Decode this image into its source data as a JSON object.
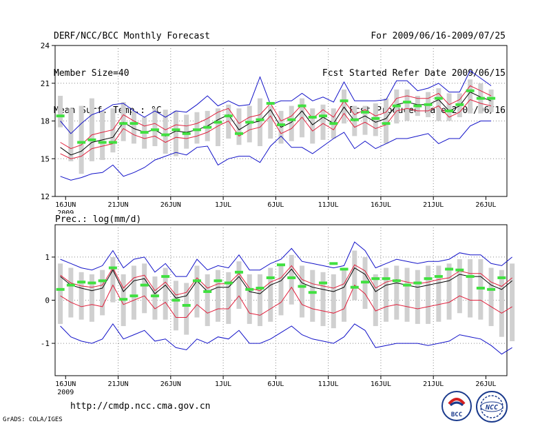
{
  "header": {
    "left": [
      "DERF/NCC/BCC Monthly Forecast",
      "Member Size=40",
      "Mean Surf. Temp.: °C"
    ],
    "right": [
      "For 2009/06/16-2009/07/25",
      "Fcst Started Refer Date 2009/06/15",
      "Fcst Produced Date 2009/06/16"
    ]
  },
  "footer": {
    "url": "http://cmdp.ncc.cma.gov.cn",
    "grads": "GrADS: COLA/IGES",
    "logo_bcc": "BCC",
    "logo_ncc": "NCC"
  },
  "colors": {
    "ensemble_mean": "#000000",
    "inner_bounds": "#e0203c",
    "outer_bounds": "#1010c8",
    "observed_marker": "#40e040",
    "spread_bar": "#d0d0d0",
    "grid": "#888888"
  },
  "chart_data": [
    {
      "type": "line",
      "title": "Mean Surf. Temp.: °C",
      "ylim": [
        12,
        24
      ],
      "yticks": [
        12,
        15,
        18,
        21,
        24
      ],
      "x_tick_labels": [
        "16JUN",
        "21JUN",
        "26JUN",
        "1JUL",
        "6JUL",
        "11JUL",
        "16JUL",
        "21JUL",
        "26JUL"
      ],
      "x_sub_label": "2009",
      "days": 40,
      "series": [
        {
          "name": "ensemble_mean",
          "values": [
            15.9,
            15.3,
            15.6,
            16.3,
            16.5,
            16.7,
            17.9,
            17.4,
            17.1,
            17.3,
            16.8,
            17.2,
            17.1,
            17.3,
            17.6,
            18.1,
            18.5,
            17.3,
            17.8,
            18.0,
            18.9,
            17.5,
            17.9,
            18.8,
            17.7,
            18.3,
            17.8,
            19.1,
            18.0,
            18.4,
            17.9,
            18.2,
            19.3,
            19.5,
            19.3,
            19.3,
            19.7,
            18.8,
            19.2,
            20.3,
            19.9,
            19.6
          ]
        },
        {
          "name": "inner_upper",
          "values": [
            16.3,
            15.8,
            16.1,
            16.9,
            17.1,
            17.3,
            18.5,
            18.0,
            17.6,
            17.8,
            17.3,
            17.7,
            17.6,
            17.8,
            18.2,
            18.7,
            19.0,
            17.8,
            18.3,
            18.5,
            19.4,
            18.0,
            18.4,
            19.3,
            18.2,
            18.9,
            18.3,
            19.6,
            18.5,
            18.9,
            18.4,
            18.7,
            19.8,
            20.0,
            19.8,
            19.8,
            20.2,
            19.3,
            19.7,
            20.8,
            20.4,
            20.0
          ]
        },
        {
          "name": "inner_lower",
          "values": [
            15.4,
            15.0,
            15.2,
            15.8,
            16.0,
            16.2,
            17.4,
            16.9,
            16.6,
            16.8,
            16.3,
            16.7,
            16.6,
            16.8,
            17.1,
            17.6,
            18.0,
            16.8,
            17.3,
            17.5,
            18.4,
            17.0,
            17.4,
            18.3,
            17.2,
            17.8,
            17.3,
            18.6,
            17.5,
            17.9,
            17.4,
            17.7,
            18.8,
            19.0,
            18.8,
            18.8,
            19.2,
            18.3,
            18.7,
            19.7,
            19.4,
            19.2
          ]
        },
        {
          "name": "outer_upper",
          "values": [
            18.0,
            17.0,
            17.8,
            18.5,
            18.8,
            19.3,
            19.4,
            18.8,
            18.3,
            18.8,
            18.3,
            18.8,
            18.7,
            19.3,
            20.0,
            19.2,
            19.6,
            19.2,
            19.3,
            21.5,
            19.3,
            19.6,
            19.6,
            20.2,
            19.6,
            19.9,
            19.5,
            21.1,
            19.6,
            19.6,
            19.6,
            19.7,
            21.2,
            21.2,
            20.4,
            20.6,
            21.0,
            20.3,
            20.3,
            22.0,
            21.4,
            20.8
          ]
        },
        {
          "name": "outer_lower",
          "values": [
            13.6,
            13.3,
            13.5,
            13.8,
            13.9,
            14.5,
            13.6,
            13.9,
            14.3,
            14.9,
            15.2,
            15.5,
            15.3,
            15.9,
            16.0,
            14.5,
            15.0,
            15.2,
            15.2,
            14.7,
            16.0,
            16.8,
            15.9,
            15.9,
            15.4,
            16.0,
            16.6,
            17.1,
            15.8,
            16.4,
            15.8,
            16.2,
            16.6,
            16.6,
            16.8,
            17.0,
            16.2,
            16.6,
            16.6,
            17.6,
            18.0,
            18.0
          ]
        },
        {
          "name": "observed",
          "values": [
            18.4,
            null,
            16.3,
            16.5,
            16.3,
            16.3,
            17.8,
            17.8,
            17.1,
            17.3,
            16.9,
            17.3,
            17.0,
            17.3,
            17.5,
            17.9,
            18.4,
            17.0,
            17.9,
            18.1,
            19.4,
            17.7,
            18.1,
            19.2,
            18.3,
            18.4,
            17.8,
            19.6,
            18.1,
            18.7,
            18.2,
            17.8,
            19.2,
            19.5,
            19.2,
            19.3,
            19.8,
            18.8,
            19.3,
            20.4,
            19.8,
            19.8
          ]
        },
        {
          "name": "spread_high",
          "values": [
            20.0,
            19.0,
            19.2,
            19.8,
            18.8,
            19.0,
            19.5,
            18.8,
            18.3,
            19.0,
            18.9,
            18.8,
            18.5,
            18.7,
            18.8,
            19.0,
            19.3,
            19.0,
            19.2,
            19.8,
            19.2,
            18.8,
            19.2,
            19.8,
            19.0,
            19.3,
            19.0,
            20.5,
            19.2,
            19.2,
            19.4,
            19.8,
            20.5,
            20.5,
            20.0,
            20.3,
            20.6,
            20.2,
            20.2,
            21.3,
            21.0,
            20.5
          ]
        },
        {
          "name": "spread_low",
          "values": [
            17.5,
            14.8,
            13.8,
            14.8,
            14.9,
            15.5,
            16.4,
            16.2,
            15.8,
            16.0,
            15.4,
            15.2,
            15.8,
            16.2,
            16.4,
            16.0,
            16.6,
            16.1,
            16.3,
            16.0,
            16.6,
            16.2,
            16.4,
            16.7,
            16.2,
            16.5,
            16.6,
            17.8,
            16.8,
            16.9,
            16.8,
            16.2,
            17.8,
            18.0,
            18.4,
            18.3,
            18.0,
            18.0,
            18.3,
            18.6,
            18.6,
            18.7
          ]
        }
      ]
    },
    {
      "type": "line",
      "title": "Prec.: log(mm/d)",
      "ylim": [
        -1.75,
        1.75
      ],
      "yticks": [
        -1,
        0,
        1
      ],
      "x_tick_labels": [
        "16JUN",
        "21JUN",
        "26JUN",
        "1JUL",
        "6JUL",
        "11JUL",
        "16JUL",
        "21JUL",
        "26JUL"
      ],
      "x_sub_label": "2009",
      "days": 40,
      "series": [
        {
          "name": "ensemble_mean",
          "values": [
            0.55,
            0.35,
            0.28,
            0.22,
            0.28,
            0.7,
            0.2,
            0.45,
            0.5,
            0.15,
            0.35,
            0.05,
            0.1,
            0.45,
            0.2,
            0.3,
            0.3,
            0.55,
            0.2,
            0.15,
            0.35,
            0.45,
            0.72,
            0.4,
            0.3,
            0.25,
            0.2,
            0.3,
            0.75,
            0.6,
            0.2,
            0.35,
            0.4,
            0.35,
            0.3,
            0.35,
            0.4,
            0.45,
            0.6,
            0.55,
            0.55,
            0.35,
            0.25,
            0.45
          ]
        },
        {
          "name": "inner_upper",
          "values": [
            0.58,
            0.4,
            0.33,
            0.3,
            0.35,
            0.75,
            0.28,
            0.52,
            0.58,
            0.22,
            0.42,
            0.12,
            0.18,
            0.52,
            0.28,
            0.38,
            0.38,
            0.62,
            0.28,
            0.22,
            0.42,
            0.52,
            0.8,
            0.48,
            0.38,
            0.33,
            0.28,
            0.38,
            0.82,
            0.68,
            0.28,
            0.42,
            0.48,
            0.42,
            0.38,
            0.42,
            0.48,
            0.52,
            0.68,
            0.62,
            0.62,
            0.42,
            0.32,
            0.52
          ]
        },
        {
          "name": "inner_lower",
          "values": [
            0.1,
            -0.05,
            -0.15,
            -0.1,
            -0.15,
            0.35,
            -0.1,
            0.0,
            0.1,
            -0.2,
            -0.05,
            -0.4,
            -0.4,
            -0.1,
            -0.3,
            -0.2,
            -0.2,
            0.1,
            -0.3,
            -0.35,
            -0.2,
            -0.05,
            0.3,
            -0.1,
            -0.2,
            -0.25,
            -0.3,
            -0.2,
            0.35,
            0.15,
            -0.25,
            -0.15,
            -0.1,
            -0.15,
            -0.2,
            -0.15,
            -0.1,
            -0.05,
            0.1,
            0.0,
            0.0,
            -0.15,
            -0.3,
            -0.15
          ]
        },
        {
          "name": "outer_upper",
          "values": [
            0.95,
            0.85,
            0.75,
            0.7,
            0.8,
            1.15,
            0.75,
            0.95,
            1.0,
            0.65,
            0.85,
            0.55,
            0.55,
            0.95,
            0.7,
            0.8,
            0.75,
            1.05,
            0.7,
            0.7,
            0.85,
            0.95,
            1.2,
            0.9,
            0.85,
            0.8,
            0.75,
            0.8,
            1.35,
            1.15,
            0.75,
            0.85,
            0.95,
            0.9,
            0.85,
            0.9,
            0.9,
            0.95,
            1.1,
            1.05,
            1.05,
            0.85,
            0.8,
            1.0
          ]
        },
        {
          "name": "outer_lower",
          "values": [
            -0.6,
            -0.85,
            -0.95,
            -1.0,
            -0.9,
            -0.55,
            -0.9,
            -0.8,
            -0.7,
            -0.95,
            -0.9,
            -1.1,
            -1.15,
            -0.9,
            -1.0,
            -0.85,
            -0.9,
            -0.7,
            -1.0,
            -1.0,
            -0.9,
            -0.75,
            -0.6,
            -0.8,
            -0.9,
            -0.95,
            -1.0,
            -0.85,
            -0.55,
            -0.7,
            -1.1,
            -1.05,
            -1.0,
            -1.0,
            -1.0,
            -1.05,
            -1.0,
            -0.95,
            -0.8,
            -0.85,
            -0.9,
            -1.05,
            -1.25,
            -1.1
          ]
        },
        {
          "name": "observed",
          "values": [
            0.25,
            0.35,
            0.42,
            0.4,
            0.45,
            0.75,
            0.02,
            0.1,
            0.35,
            0.1,
            0.55,
            0.0,
            -0.12,
            0.45,
            0.2,
            0.45,
            0.4,
            0.65,
            0.25,
            0.28,
            0.52,
            0.82,
            0.52,
            0.32,
            0.18,
            0.4,
            0.85,
            0.72,
            0.3,
            0.42,
            0.5,
            0.5,
            0.45,
            0.35,
            0.4,
            0.5,
            0.55,
            0.72,
            0.7,
            0.55,
            0.28,
            0.25,
            0.52
          ]
        },
        {
          "name": "spread_high",
          "values": [
            0.85,
            0.75,
            0.65,
            0.6,
            0.7,
            1.0,
            0.6,
            0.8,
            0.85,
            0.55,
            0.75,
            0.45,
            0.4,
            0.8,
            0.6,
            0.7,
            0.65,
            0.9,
            0.6,
            0.6,
            0.75,
            0.8,
            1.05,
            0.8,
            0.7,
            0.65,
            0.6,
            0.7,
            1.15,
            1.0,
            0.6,
            0.75,
            0.8,
            0.75,
            0.7,
            0.8,
            0.8,
            0.85,
            0.95,
            0.95,
            0.95,
            0.75,
            0.7,
            0.85
          ]
        },
        {
          "name": "spread_low",
          "values": [
            -0.55,
            -0.4,
            -0.45,
            -0.5,
            -0.35,
            -0.05,
            -0.6,
            -0.45,
            -0.3,
            -0.45,
            -0.45,
            -0.7,
            -0.8,
            -0.4,
            -0.6,
            -0.5,
            -0.55,
            -0.2,
            -0.55,
            -0.6,
            -0.5,
            -0.35,
            -0.1,
            -0.4,
            -0.5,
            -0.6,
            -0.65,
            -0.5,
            0.0,
            -0.2,
            -0.6,
            -0.5,
            -0.45,
            -0.5,
            -0.55,
            -0.55,
            -0.5,
            -0.45,
            -0.3,
            -0.4,
            -0.45,
            -0.6,
            -0.85,
            -0.95
          ]
        }
      ]
    }
  ]
}
